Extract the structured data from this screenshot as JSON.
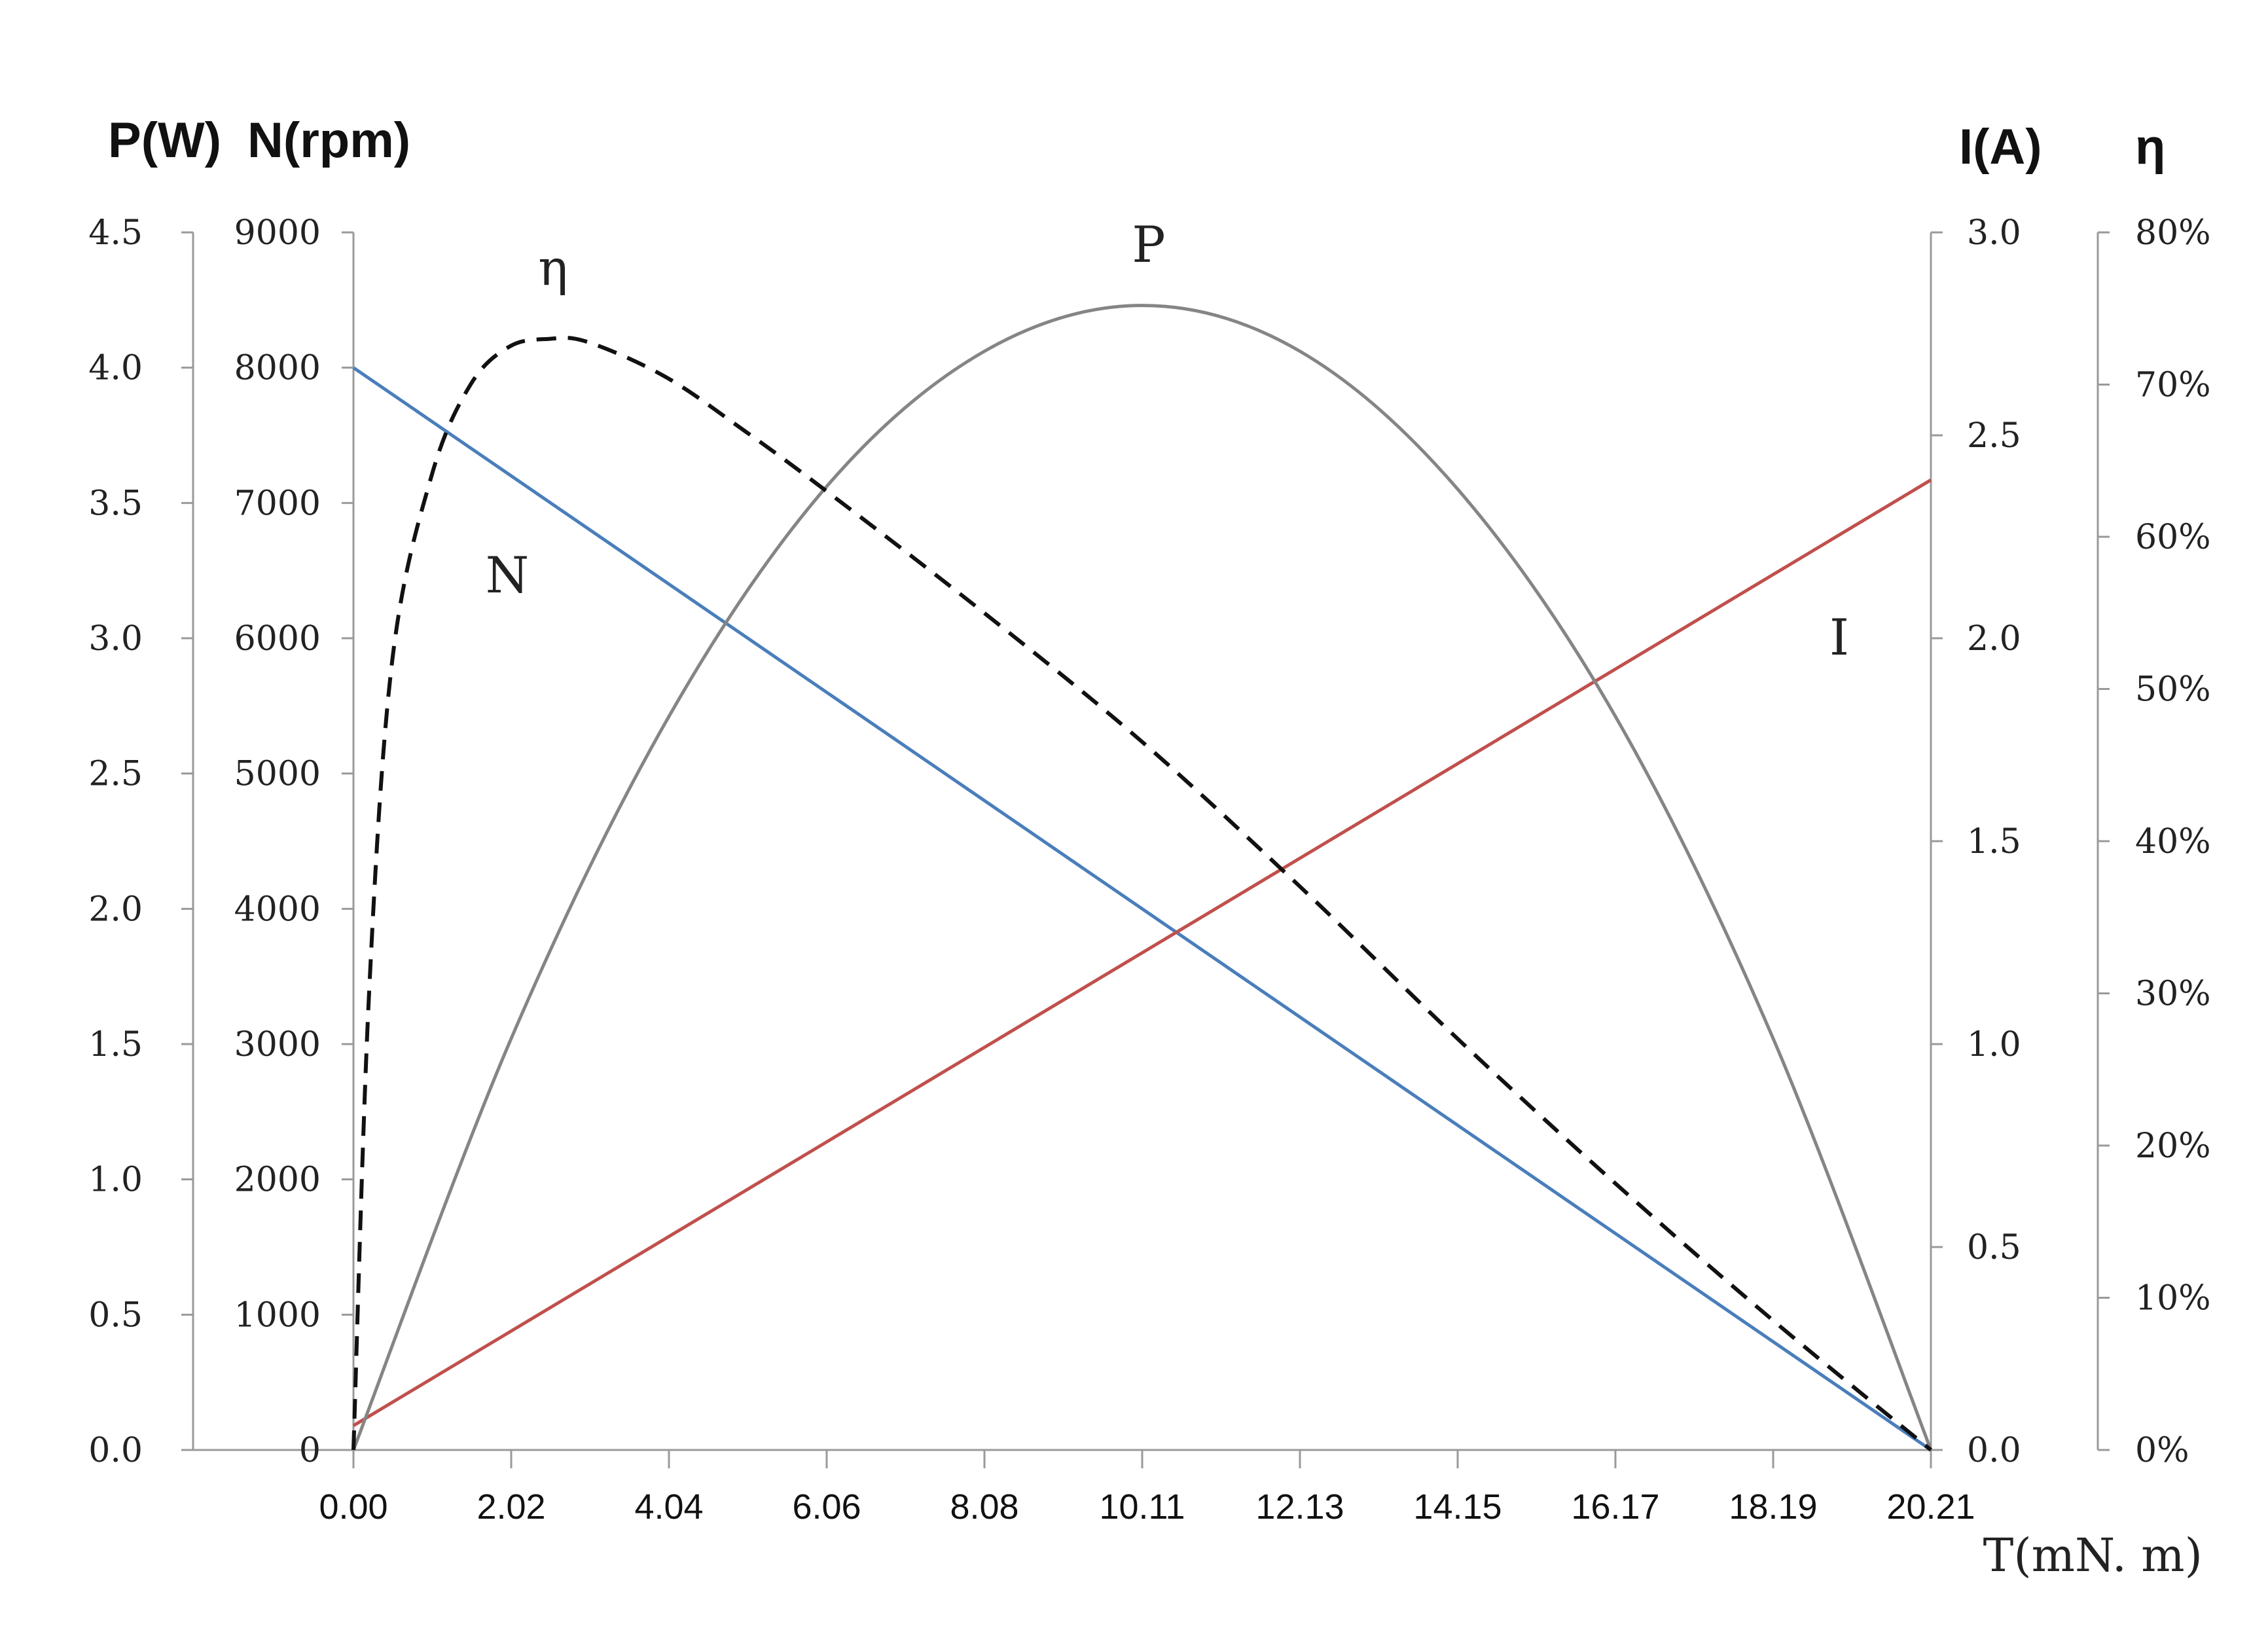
{
  "chart_data": {
    "type": "line",
    "xlabel": "T(mN. m)",
    "x_ticks": [
      "0.00",
      "2.02",
      "4.04",
      "6.06",
      "8.08",
      "10.11",
      "12.13",
      "14.15",
      "16.17",
      "18.19",
      "20.21"
    ],
    "xlim": [
      0,
      20.21
    ],
    "left_axis_titles": [
      "P(W)",
      "N(rpm)"
    ],
    "right_axis_titles": [
      "I(A)",
      "η"
    ],
    "axes": {
      "P": {
        "title": "P(W)",
        "lim": [
          0,
          4.5
        ],
        "ticks": [
          "0.0",
          "0.5",
          "1.0",
          "1.5",
          "2.0",
          "2.5",
          "3.0",
          "3.5",
          "4.0",
          "4.5"
        ]
      },
      "N": {
        "title": "N(rpm)",
        "lim": [
          0,
          9000
        ],
        "ticks": [
          "0",
          "1000",
          "2000",
          "3000",
          "4000",
          "5000",
          "6000",
          "7000",
          "8000",
          "9000"
        ]
      },
      "I": {
        "title": "I(A)",
        "lim": [
          0,
          3.0
        ],
        "ticks": [
          "0.0",
          "0.5",
          "1.0",
          "1.5",
          "2.0",
          "2.5",
          "3.0"
        ]
      },
      "eta": {
        "title": "η",
        "lim": [
          0,
          80
        ],
        "ticks": [
          "0%",
          "10%",
          "20%",
          "30%",
          "40%",
          "50%",
          "60%",
          "70%",
          "80%"
        ]
      }
    },
    "series": [
      {
        "name": "N",
        "axis": "N",
        "color": "#4a7ebb",
        "style": "solid",
        "x": [
          0.0,
          20.21
        ],
        "y": [
          8000,
          0
        ]
      },
      {
        "name": "I",
        "axis": "I",
        "color": "#c0504d",
        "style": "solid",
        "x": [
          0.0,
          20.21
        ],
        "y": [
          0.06,
          2.39
        ]
      },
      {
        "name": "P",
        "axis": "P",
        "color": "#858585",
        "style": "solid",
        "x": [
          0.0,
          2.02,
          4.04,
          6.06,
          8.08,
          10.11,
          12.13,
          14.15,
          16.17,
          18.19,
          20.21
        ],
        "y": [
          0.0,
          1.52,
          2.71,
          3.56,
          4.06,
          4.23,
          4.06,
          3.55,
          2.71,
          1.52,
          0.0
        ]
      },
      {
        "name": "η",
        "axis": "eta",
        "color": "#111111",
        "style": "dashed",
        "x": [
          0.0,
          0.2,
          0.5,
          1.0,
          1.5,
          2.0,
          2.5,
          3.0,
          4.0,
          5.0,
          6.06,
          8.08,
          10.11,
          12.13,
          14.15,
          16.17,
          18.19,
          20.21
        ],
        "y": [
          0,
          30,
          52,
          64,
          70,
          72.5,
          73,
          72.8,
          70.5,
          67,
          63,
          55,
          46.5,
          37,
          27,
          17.5,
          8.5,
          0
        ]
      }
    ]
  }
}
